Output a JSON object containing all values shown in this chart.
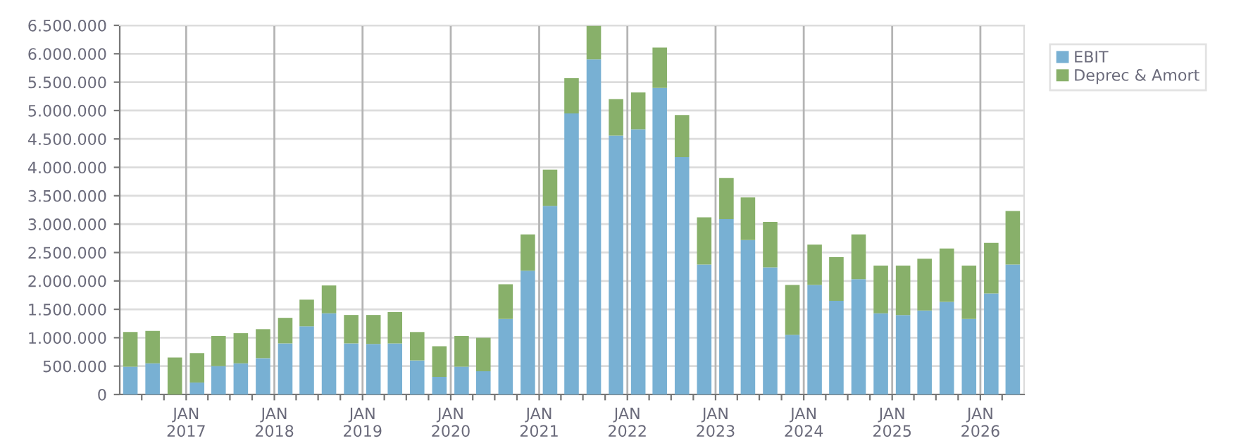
{
  "chart_data": {
    "type": "bar",
    "stacked": true,
    "x": [
      "2016-05-15",
      "2016-08-15",
      "2016-11-15",
      "2017-02-15",
      "2017-05-15",
      "2017-08-15",
      "2017-11-15",
      "2018-02-15",
      "2018-05-15",
      "2018-08-15",
      "2018-11-15",
      "2019-02-15",
      "2019-05-15",
      "2019-08-15",
      "2019-11-15",
      "2020-02-15",
      "2020-05-15",
      "2020-08-15",
      "2020-11-15",
      "2021-02-15",
      "2021-05-15",
      "2021-08-15",
      "2021-11-15",
      "2022-02-15",
      "2022-05-15",
      "2022-08-15",
      "2022-11-15",
      "2023-02-15",
      "2023-05-15",
      "2023-08-15",
      "2023-11-15",
      "2024-02-15",
      "2024-05-15",
      "2024-08-15",
      "2024-11-15",
      "2025-02-15",
      "2025-05-15",
      "2025-08-15",
      "2025-11-15",
      "2026-02-15",
      "2026-05-15"
    ],
    "series": [
      {
        "name": "EBIT",
        "color": "#78b0d3",
        "values": [
          490000,
          550000,
          0,
          210000,
          500000,
          550000,
          640000,
          900000,
          1200000,
          1430000,
          900000,
          890000,
          900000,
          600000,
          310000,
          490000,
          410000,
          1330000,
          2180000,
          3320000,
          4950000,
          5900000,
          4560000,
          4670000,
          5400000,
          4180000,
          2290000,
          3090000,
          2720000,
          2240000,
          1050000,
          1930000,
          1650000,
          2030000,
          1430000,
          1400000,
          1480000,
          1630000,
          1330000,
          1780000,
          2290000
        ]
      },
      {
        "name": "Deprec & Amort",
        "color": "#88b06a",
        "values": [
          610000,
          570000,
          650000,
          520000,
          530000,
          530000,
          510000,
          450000,
          470000,
          490000,
          500000,
          510000,
          550000,
          500000,
          540000,
          540000,
          590000,
          610000,
          640000,
          640000,
          620000,
          590000,
          640000,
          650000,
          710000,
          740000,
          830000,
          720000,
          750000,
          800000,
          880000,
          710000,
          770000,
          790000,
          840000,
          870000,
          910000,
          940000,
          940000,
          890000,
          940000
        ]
      }
    ],
    "xlim": [
      "2016-04-01",
      "2026-07-01"
    ],
    "xticks": [
      {
        "value": "2016-07-01",
        "label": null
      },
      {
        "value": "2016-10-01",
        "label": null
      },
      {
        "value": "2017-01-01",
        "label": "JAN\n2017"
      },
      {
        "value": "2017-04-01",
        "label": null
      },
      {
        "value": "2017-07-01",
        "label": null
      },
      {
        "value": "2017-10-01",
        "label": null
      },
      {
        "value": "2018-01-01",
        "label": "JAN\n2018"
      },
      {
        "value": "2018-04-01",
        "label": null
      },
      {
        "value": "2018-07-01",
        "label": null
      },
      {
        "value": "2018-10-01",
        "label": null
      },
      {
        "value": "2019-01-01",
        "label": "JAN\n2019"
      },
      {
        "value": "2019-04-01",
        "label": null
      },
      {
        "value": "2019-07-01",
        "label": null
      },
      {
        "value": "2019-10-01",
        "label": null
      },
      {
        "value": "2020-01-01",
        "label": "JAN\n2020"
      },
      {
        "value": "2020-04-01",
        "label": null
      },
      {
        "value": "2020-07-01",
        "label": null
      },
      {
        "value": "2020-10-01",
        "label": null
      },
      {
        "value": "2021-01-01",
        "label": "JAN\n2021"
      },
      {
        "value": "2021-04-01",
        "label": null
      },
      {
        "value": "2021-07-01",
        "label": null
      },
      {
        "value": "2021-10-01",
        "label": null
      },
      {
        "value": "2022-01-01",
        "label": "JAN\n2022"
      },
      {
        "value": "2022-04-01",
        "label": null
      },
      {
        "value": "2022-07-01",
        "label": null
      },
      {
        "value": "2022-10-01",
        "label": null
      },
      {
        "value": "2023-01-01",
        "label": "JAN\n2023"
      },
      {
        "value": "2023-04-01",
        "label": null
      },
      {
        "value": "2023-07-01",
        "label": null
      },
      {
        "value": "2023-10-01",
        "label": null
      },
      {
        "value": "2024-01-01",
        "label": "JAN\n2024"
      },
      {
        "value": "2024-04-01",
        "label": null
      },
      {
        "value": "2024-07-01",
        "label": null
      },
      {
        "value": "2024-10-01",
        "label": null
      },
      {
        "value": "2025-01-01",
        "label": "JAN\n2025"
      },
      {
        "value": "2025-04-01",
        "label": null
      },
      {
        "value": "2025-07-01",
        "label": null
      },
      {
        "value": "2025-10-01",
        "label": null
      },
      {
        "value": "2026-01-01",
        "label": "JAN\n2026"
      },
      {
        "value": "2026-04-01",
        "label": null
      }
    ],
    "ylim": [
      0,
      6500000
    ],
    "yticks": [
      0,
      {
        "value": 500000,
        "label": "500.000"
      },
      {
        "value": 1000000,
        "label": "1.000.000"
      },
      {
        "value": 1500000,
        "label": "1.500.000"
      },
      {
        "value": 2000000,
        "label": "2.000.000"
      },
      {
        "value": 2500000,
        "label": "2.500.000"
      },
      {
        "value": 3000000,
        "label": "3.000.000"
      },
      {
        "value": 3500000,
        "label": "3.500.000"
      },
      {
        "value": 4000000,
        "label": "4.000.000"
      },
      {
        "value": 4500000,
        "label": "4.500.000"
      },
      {
        "value": 5000000,
        "label": "5.000.000"
      },
      {
        "value": 5500000,
        "label": "5.500.000"
      },
      {
        "value": 6000000,
        "label": "6.000.000"
      },
      {
        "value": 6500000,
        "label": "6.500.000"
      }
    ],
    "grid": true,
    "legend": "top right"
  }
}
